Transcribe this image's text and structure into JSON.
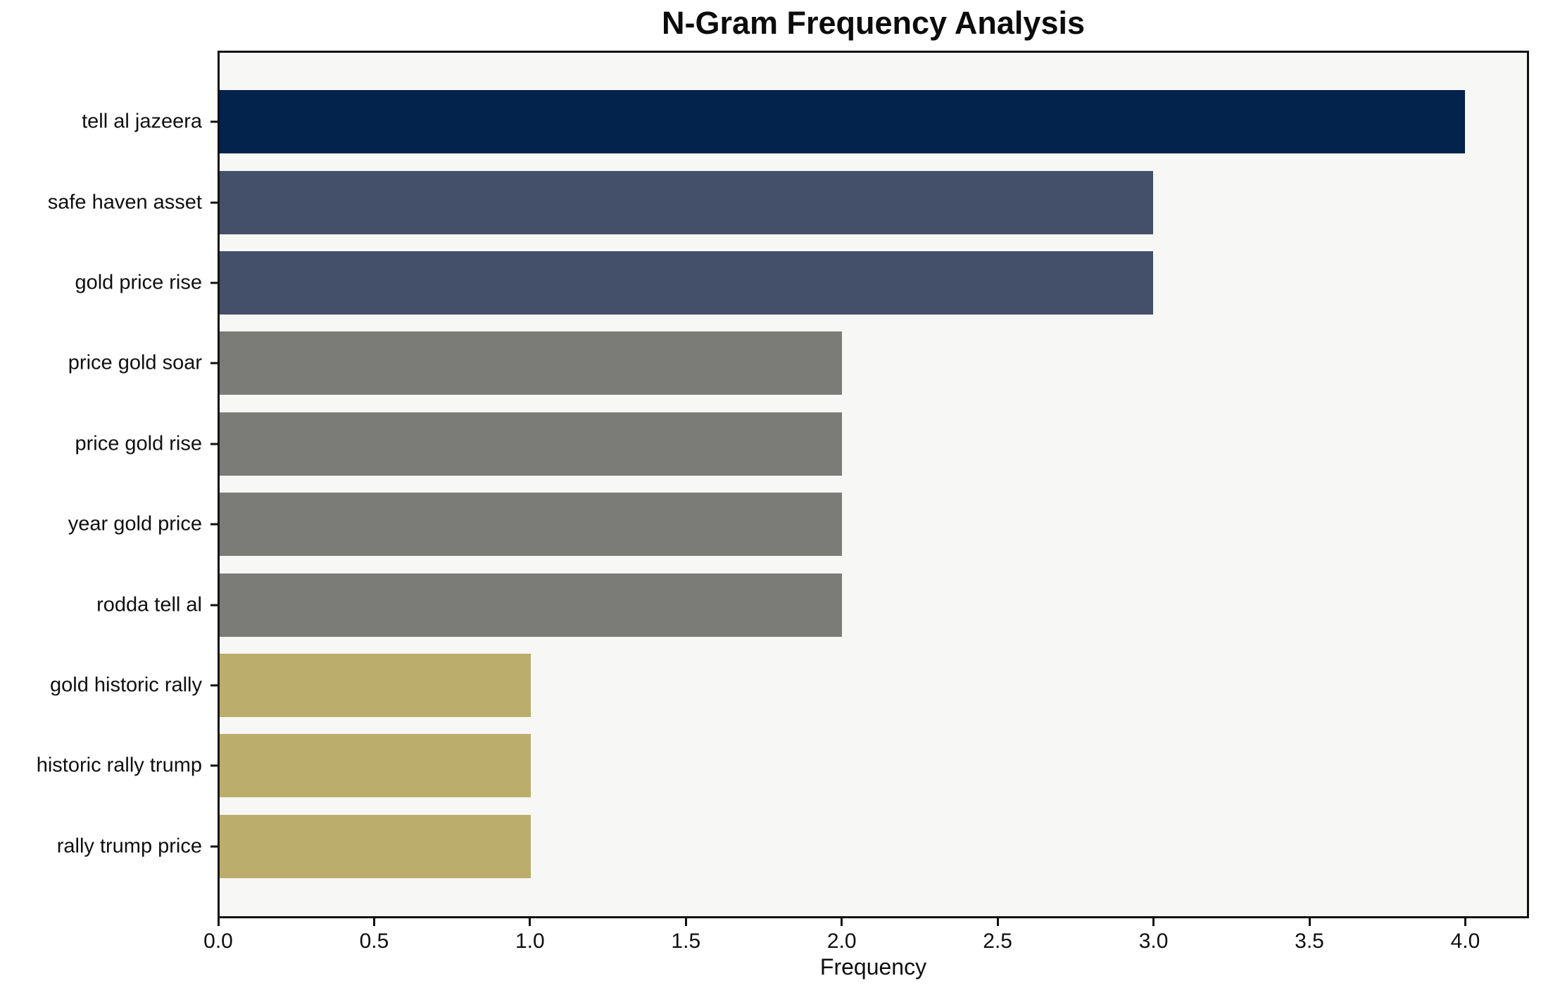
{
  "chart_data": {
    "type": "bar",
    "orientation": "horizontal",
    "title": "N-Gram Frequency Analysis",
    "xlabel": "Frequency",
    "ylabel": "",
    "categories": [
      "tell al jazeera",
      "safe haven asset",
      "gold price rise",
      "price gold soar",
      "price gold rise",
      "year gold price",
      "rodda tell al",
      "gold historic rally",
      "historic rally trump",
      "rally trump price"
    ],
    "values": [
      4,
      3,
      3,
      2,
      2,
      2,
      2,
      1,
      1,
      1
    ],
    "xlim": [
      0,
      4.2
    ],
    "xticks": [
      0,
      0.5,
      1,
      1.5,
      2,
      2.5,
      3,
      3.5,
      4
    ],
    "grid": false,
    "legend_position": "none",
    "bar_colors": [
      "#03234c",
      "#444f6a",
      "#444f6a",
      "#7b7b78",
      "#7b7b78",
      "#7b7b78",
      "#7b7b78",
      "#bbad6c",
      "#bbad6c",
      "#bbad6c"
    ],
    "colors": {
      "plot_background": "#f7f7f6",
      "figure_background": "#ffffff",
      "spine": "#111111",
      "text": "#0f0f0f"
    }
  }
}
